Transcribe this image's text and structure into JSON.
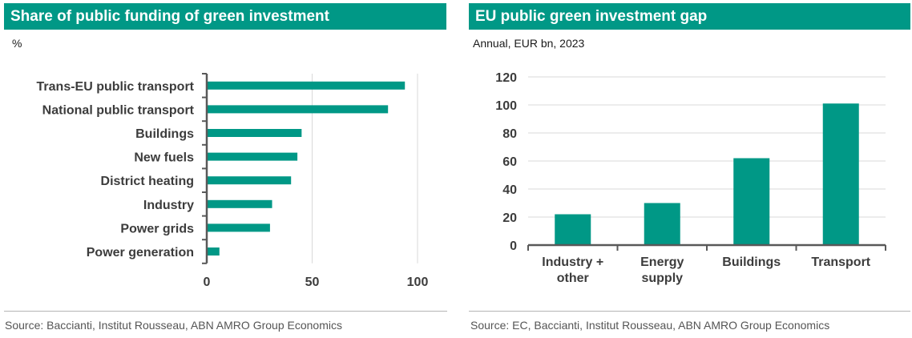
{
  "colors": {
    "accent": "#009886",
    "axis": "#595959",
    "grid": "#d9d9d9",
    "source_text": "#555555"
  },
  "charts": {
    "left": {
      "title": "Share of public funding of green investment",
      "subtitle": "%",
      "source": "Source: Baccianti, Institut Rousseau, ABN AMRO Group Economics"
    },
    "right": {
      "title": "EU public green investment gap",
      "subtitle": "Annual, EUR bn, 2023",
      "source": "Source: EC, Baccianti, Institut Rousseau, ABN AMRO Group Economics"
    }
  },
  "chart_data": [
    {
      "type": "bar",
      "orientation": "horizontal",
      "title": "Share of public funding of green investment",
      "subtitle": "%",
      "categories": [
        "Trans-EU  public transport",
        "National public transport",
        "Buildings",
        "New fuels",
        "District heating",
        "Industry",
        "Power grids",
        "Power generation"
      ],
      "values": [
        94,
        86,
        45,
        43,
        40,
        31,
        30,
        6
      ],
      "xlim": [
        0,
        100
      ],
      "xticks": [
        0,
        50,
        100
      ],
      "grid": "vertical",
      "color": "#009886"
    },
    {
      "type": "bar",
      "orientation": "vertical",
      "title": "EU public green investment gap",
      "subtitle": "Annual, EUR bn, 2023",
      "categories": [
        "Industry + other",
        "Energy supply",
        "Buildings",
        "Transport"
      ],
      "values": [
        22,
        30,
        62,
        101
      ],
      "ylim": [
        0,
        120
      ],
      "yticks": [
        0,
        20,
        40,
        60,
        80,
        100,
        120
      ],
      "grid": "horizontal",
      "color": "#009886"
    }
  ]
}
